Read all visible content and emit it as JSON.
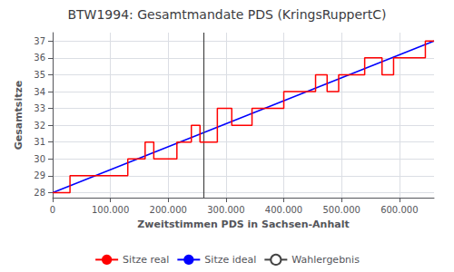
{
  "chart_data": {
    "type": "line",
    "title": "BTW1994: Gesamtmandate PDS (KringsRuppertC)",
    "xlabel": "Zweitstimmen PDS in Sachsen-Anhalt",
    "ylabel": "Gesamtsitze",
    "series": [
      {
        "name": "Sitze real",
        "color": "red",
        "x": [
          0,
          30000,
          30000,
          75000,
          75000,
          130000,
          130000,
          160000,
          160000,
          175000,
          175000,
          215000,
          215000,
          240000,
          240000,
          255000,
          255000,
          285000,
          285000,
          310000,
          310000,
          345000,
          345000,
          365000,
          365000,
          400000,
          400000,
          425000,
          425000,
          455000,
          455000,
          475000,
          475000,
          495000,
          495000,
          515000,
          515000,
          540000,
          540000,
          570000,
          570000,
          590000,
          590000,
          620000,
          620000,
          645000,
          645000,
          660000
        ],
        "values": [
          28,
          28,
          29,
          29,
          29,
          29,
          30,
          30,
          31,
          31,
          30,
          30,
          31,
          31,
          32,
          32,
          31,
          31,
          33,
          33,
          32,
          32,
          33,
          33,
          33,
          33,
          34,
          34,
          34,
          34,
          35,
          35,
          34,
          34,
          35,
          35,
          35,
          35,
          36,
          36,
          35,
          35,
          36,
          36,
          36,
          36,
          37,
          37
        ]
      },
      {
        "name": "Sitze ideal",
        "color": "blue",
        "x": [
          0,
          660000
        ],
        "values": [
          28.0,
          37.0
        ]
      },
      {
        "name": "Wahlergebnis",
        "type": "vline",
        "color": "#444444",
        "x": [
          262000
        ]
      }
    ],
    "xlim": [
      0,
      660000
    ],
    "ylim": [
      27.7,
      37.5
    ],
    "xticks": [
      0,
      {
        "value": 100000,
        "label": "100.000"
      },
      {
        "value": 200000,
        "label": "200.000"
      },
      {
        "value": 300000,
        "label": "300.000"
      },
      {
        "value": 400000,
        "label": "400.000"
      },
      {
        "value": 500000,
        "label": "500.000"
      },
      {
        "value": 600000,
        "label": "600.000"
      }
    ],
    "yticks": [
      28,
      29,
      30,
      31,
      32,
      33,
      34,
      35,
      36,
      37
    ],
    "grid": true,
    "legend": "bottom"
  }
}
